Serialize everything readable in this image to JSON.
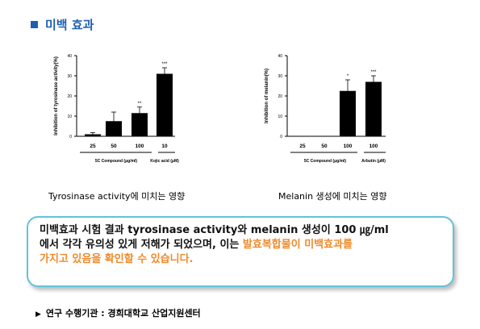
{
  "page": {
    "title": "미백 효과",
    "footer_label": "연구 수행기관 : 경희대학교 산업지원센터"
  },
  "colors": {
    "title": "#1f5fb0",
    "highlight": "#f08a2b",
    "border": "#63c3d8",
    "bar": "#000000"
  },
  "icons": {
    "title_marker": "square-bullet",
    "footer_marker": "triangle-right"
  },
  "summary": {
    "line1": "미백효과 시험 결과 tyrosinase activity와 melanin 생성이 100 ㎍/ml",
    "line2_plain": "에서 각각 유의성 있게 저해가 되었으며, 이는 ",
    "line2_highlight": "발효복합물이 미백효과를",
    "line3_highlight": "가지고 있음을 확인할 수 있습니다."
  },
  "chart_data": [
    {
      "type": "bar",
      "caption": "Tyrosinase activity에 미치는 영향",
      "ylabel": "Inhibition of tyrosinase activity(%)",
      "ylim": [
        0,
        40
      ],
      "yticks": [
        "0",
        "10",
        "20",
        "30",
        "40"
      ],
      "categories": [
        "25",
        "50",
        "100",
        "10"
      ],
      "values": [
        1,
        7.5,
        11.5,
        31
      ],
      "errors": [
        0.8,
        4.5,
        3,
        3
      ],
      "significance": [
        "",
        "",
        "**",
        "***"
      ],
      "group_labels": [
        {
          "text": "5C Compound (μg/ml)",
          "covers": [
            0,
            2
          ]
        },
        {
          "text": "Kojic acid (μM)",
          "covers": [
            3,
            3
          ]
        }
      ],
      "grid": false
    },
    {
      "type": "bar",
      "caption": "Melanin 생성에 미치는 영향",
      "ylabel": "Inhibition of melanin(%)",
      "ylim": [
        0,
        40
      ],
      "yticks": [
        "0",
        "10",
        "20",
        "30",
        "40"
      ],
      "categories": [
        "25",
        "50",
        "100",
        "100"
      ],
      "values": [
        0,
        0,
        22.5,
        27
      ],
      "errors": [
        0,
        0,
        5.5,
        3
      ],
      "significance": [
        "",
        "",
        "*",
        "***"
      ],
      "group_labels": [
        {
          "text": "5C Compound (μg/ml)",
          "covers": [
            0,
            2
          ]
        },
        {
          "text": "Arbutin (μM)",
          "covers": [
            3,
            3
          ]
        }
      ],
      "grid": false
    }
  ]
}
